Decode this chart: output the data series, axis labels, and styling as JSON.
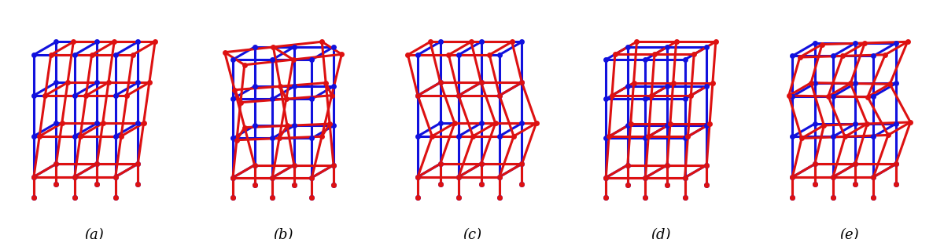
{
  "background_color": "#ffffff",
  "fig_width": 12.0,
  "fig_height": 3.05,
  "labels": [
    "(a)",
    "(b)",
    "(c)",
    "(d)",
    "(e)"
  ],
  "blue_color": "#1111dd",
  "red_color": "#dd1111",
  "lw": 2.2,
  "ms": 5.0,
  "proj_cos": 0.55,
  "proj_sin": 0.32,
  "modes": [
    "mode_a",
    "mode_b",
    "mode_c",
    "mode_d",
    "mode_e"
  ]
}
